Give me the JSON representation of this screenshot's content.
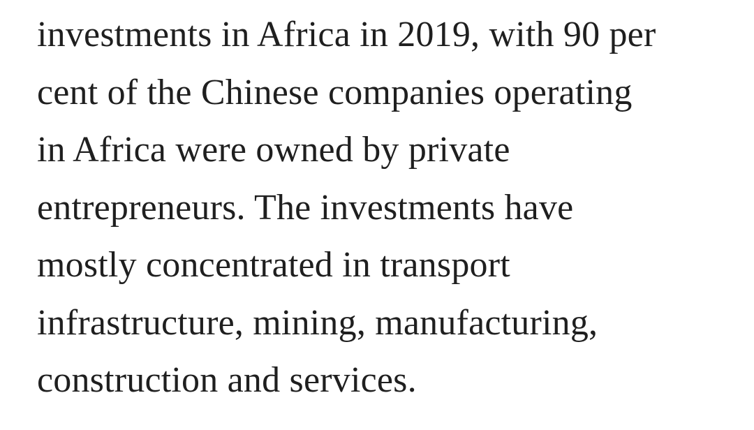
{
  "paragraph": {
    "lines": [
      "investments in Africa in 2019, with 90 per",
      "cent of the Chinese companies operating",
      "in Africa were owned by private",
      "entrepreneurs. The investments have",
      "mostly concentrated in transport",
      "infrastructure, mining, manufacturing,",
      "construction and services."
    ]
  }
}
